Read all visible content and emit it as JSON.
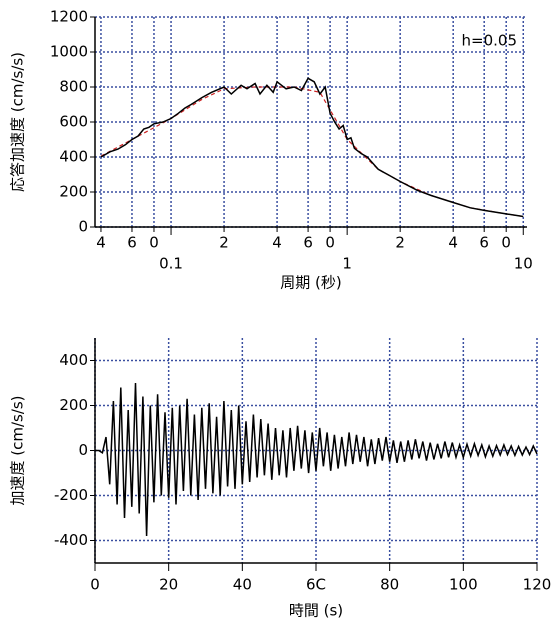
{
  "chart_data": [
    {
      "type": "line",
      "xscale": "log",
      "ylabel": "応答加速度 (cm/s/s)",
      "xlabel": "周期 (秒)",
      "annotation": "h=0.05",
      "xlim": [
        0.037,
        10.5
      ],
      "ylim": [
        0,
        1200
      ],
      "grid": true,
      "grid_color": "#3a4fa0",
      "xticks": [
        {
          "value": 0.04,
          "label": "4"
        },
        {
          "value": 0.06,
          "label": "6"
        },
        {
          "value": 0.08,
          "label": "0"
        },
        0.1,
        {
          "value": 0.2,
          "label": "2"
        },
        {
          "value": 0.4,
          "label": "4"
        },
        {
          "value": 0.6,
          "label": "6"
        },
        {
          "value": 0.8,
          "label": "0"
        },
        1,
        {
          "value": 2,
          "label": "2"
        },
        {
          "value": 4,
          "label": "4"
        },
        {
          "value": 6,
          "label": "6"
        },
        {
          "value": 8,
          "label": "0"
        },
        10
      ],
      "yticks": [
        0,
        200,
        400,
        600,
        800,
        1000,
        1200
      ],
      "series": [
        {
          "color": "#cc2222",
          "dash": true,
          "x": [
            0.04,
            0.06,
            0.1,
            0.15,
            0.2,
            0.3,
            0.5,
            0.7,
            1,
            1.5,
            2,
            3,
            5,
            8,
            10
          ],
          "values": [
            405,
            500,
            620,
            730,
            790,
            800,
            800,
            770,
            500,
            330,
            260,
            180,
            110,
            75,
            60
          ]
        },
        {
          "color": "#000000",
          "dash": false,
          "x": [
            0.04,
            0.045,
            0.05,
            0.055,
            0.06,
            0.065,
            0.07,
            0.075,
            0.08,
            0.09,
            0.1,
            0.11,
            0.12,
            0.13,
            0.15,
            0.17,
            0.2,
            0.22,
            0.25,
            0.27,
            0.3,
            0.32,
            0.35,
            0.38,
            0.4,
            0.45,
            0.5,
            0.55,
            0.6,
            0.65,
            0.7,
            0.75,
            0.8,
            0.85,
            0.9,
            0.95,
            1.0,
            1.05,
            1.1,
            1.2,
            1.3,
            1.5,
            1.7,
            2,
            2.5,
            3,
            4,
            5,
            6,
            8,
            10
          ],
          "values": [
            400,
            430,
            445,
            470,
            500,
            520,
            560,
            570,
            590,
            600,
            620,
            650,
            680,
            700,
            740,
            770,
            800,
            760,
            810,
            790,
            820,
            760,
            810,
            770,
            830,
            790,
            800,
            780,
            850,
            830,
            760,
            800,
            650,
            600,
            560,
            580,
            500,
            510,
            450,
            420,
            400,
            330,
            300,
            260,
            210,
            180,
            140,
            110,
            95,
            75,
            60
          ]
        }
      ]
    },
    {
      "type": "line",
      "xscale": "linear",
      "ylabel": "加速度 (cm/s/s)",
      "xlabel": "時間 (s)",
      "xlim": [
        0,
        120
      ],
      "ylim": [
        -500,
        500
      ],
      "grid": true,
      "grid_color": "#3a4fa0",
      "xticks": [
        0,
        20,
        40,
        {
          "value": 60,
          "label": "6C"
        },
        80,
        100,
        120
      ],
      "yticks": [
        -400,
        -200,
        0,
        200,
        400
      ],
      "series": [
        {
          "color": "#000000",
          "dash": false,
          "x": [
            0,
            1,
            2,
            3,
            4,
            5,
            6,
            7,
            8,
            9,
            10,
            11,
            12,
            13,
            14,
            15,
            16,
            17,
            18,
            19,
            20,
            21,
            22,
            23,
            24,
            25,
            26,
            27,
            28,
            29,
            30,
            31,
            32,
            33,
            34,
            35,
            36,
            37,
            38,
            39,
            40,
            41,
            42,
            43,
            44,
            45,
            46,
            47,
            48,
            49,
            50,
            51,
            52,
            53,
            54,
            55,
            56,
            57,
            58,
            59,
            60,
            61,
            62,
            63,
            64,
            65,
            66,
            67,
            68,
            69,
            70,
            71,
            72,
            73,
            74,
            75,
            76,
            77,
            78,
            79,
            80,
            81,
            82,
            83,
            84,
            85,
            86,
            87,
            88,
            89,
            90,
            91,
            92,
            93,
            94,
            95,
            96,
            97,
            98,
            99,
            100,
            101,
            102,
            103,
            104,
            105,
            106,
            107,
            108,
            109,
            110,
            111,
            112,
            113,
            114,
            115,
            116,
            117,
            118,
            119,
            120
          ],
          "values": [
            0,
            0,
            -10,
            60,
            -150,
            220,
            -240,
            280,
            -300,
            180,
            -250,
            300,
            -280,
            240,
            -380,
            200,
            -230,
            250,
            -200,
            170,
            -210,
            190,
            -240,
            200,
            -180,
            230,
            -200,
            160,
            -220,
            190,
            -170,
            210,
            -190,
            150,
            -200,
            220,
            -160,
            180,
            -170,
            200,
            -150,
            130,
            -140,
            160,
            -120,
            140,
            -110,
            120,
            -130,
            100,
            -110,
            90,
            -120,
            100,
            -90,
            110,
            -80,
            90,
            -100,
            80,
            -90,
            100,
            -70,
            80,
            -90,
            70,
            -80,
            60,
            -70,
            80,
            -60,
            70,
            -50,
            60,
            -70,
            50,
            -60,
            55,
            -45,
            60,
            -50,
            45,
            -55,
            40,
            -50,
            45,
            -40,
            50,
            -35,
            40,
            -45,
            35,
            -40,
            30,
            -35,
            40,
            -30,
            35,
            -30,
            25,
            -30,
            28,
            -25,
            30,
            -22,
            25,
            -28,
            20,
            -25,
            22,
            -20,
            25,
            -18,
            20,
            -22,
            18,
            -20,
            15,
            -18,
            20,
            -15
          ]
        }
      ]
    }
  ]
}
